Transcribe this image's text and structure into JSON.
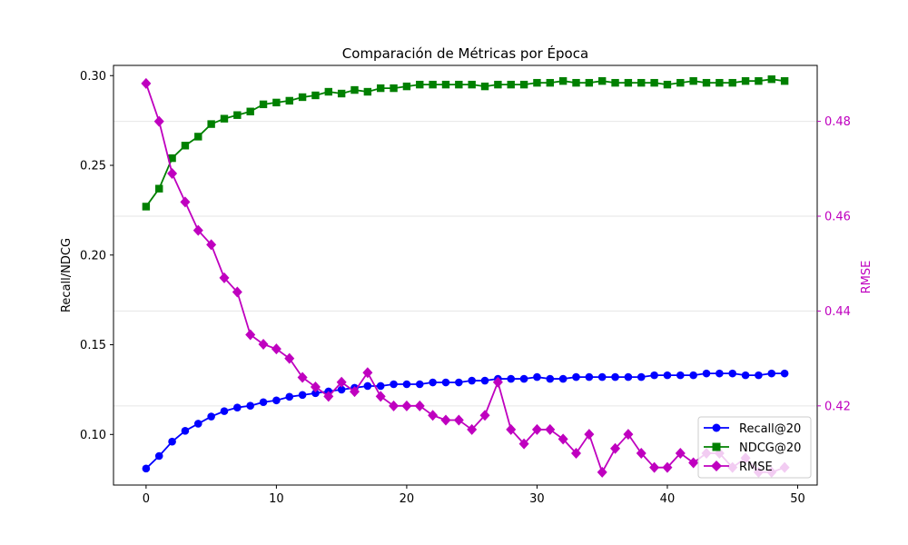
{
  "chart_data": {
    "type": "line",
    "title": "Comparación de Métricas por Época",
    "xlabel": "",
    "ylabel_left": "Recall/NDCG",
    "ylabel_right": "RMSE",
    "xlim": [
      -2.5,
      51.5
    ],
    "ylim_left": [
      0.0718,
      0.3057
    ],
    "ylim_right": [
      0.4033,
      0.4918
    ],
    "x_ticks": [
      "0",
      "10",
      "20",
      "30",
      "40",
      "50"
    ],
    "y_left_ticks": [
      "0.10",
      "0.15",
      "0.20",
      "0.25",
      "0.30"
    ],
    "y_right_ticks": [
      "0.42",
      "0.44",
      "0.46",
      "0.48"
    ],
    "grid_right": true,
    "legend_position": "lower-right",
    "x": [
      0,
      1,
      2,
      3,
      4,
      5,
      6,
      7,
      8,
      9,
      10,
      11,
      12,
      13,
      14,
      15,
      16,
      17,
      18,
      19,
      20,
      21,
      22,
      23,
      24,
      25,
      26,
      27,
      28,
      29,
      30,
      31,
      32,
      33,
      34,
      35,
      36,
      37,
      38,
      39,
      40,
      41,
      42,
      43,
      44,
      45,
      46,
      47,
      48,
      49
    ],
    "series": [
      {
        "name": "Recall@20",
        "axis": "left",
        "color": "#0000ff",
        "marker": "circle",
        "values": [
          0.081,
          0.088,
          0.096,
          0.102,
          0.106,
          0.11,
          0.113,
          0.115,
          0.116,
          0.118,
          0.119,
          0.121,
          0.122,
          0.123,
          0.124,
          0.125,
          0.126,
          0.127,
          0.127,
          0.128,
          0.128,
          0.128,
          0.129,
          0.129,
          0.129,
          0.13,
          0.13,
          0.131,
          0.131,
          0.131,
          0.132,
          0.131,
          0.131,
          0.132,
          0.132,
          0.132,
          0.132,
          0.132,
          0.132,
          0.133,
          0.133,
          0.133,
          0.133,
          0.134,
          0.134,
          0.134,
          0.133,
          0.133,
          0.134,
          0.134
        ]
      },
      {
        "name": "NDCG@20",
        "axis": "left",
        "color": "#008000",
        "marker": "square",
        "values": [
          0.227,
          0.237,
          0.254,
          0.261,
          0.266,
          0.273,
          0.276,
          0.278,
          0.28,
          0.284,
          0.285,
          0.286,
          0.288,
          0.289,
          0.291,
          0.29,
          0.292,
          0.291,
          0.293,
          0.293,
          0.294,
          0.295,
          0.295,
          0.295,
          0.295,
          0.295,
          0.294,
          0.295,
          0.295,
          0.295,
          0.296,
          0.296,
          0.297,
          0.296,
          0.296,
          0.297,
          0.296,
          0.296,
          0.296,
          0.296,
          0.295,
          0.296,
          0.297,
          0.296,
          0.296,
          0.296,
          0.297,
          0.297,
          0.298,
          0.297
        ]
      },
      {
        "name": "RMSE",
        "axis": "right",
        "color": "#bf00bf",
        "marker": "diamond",
        "values": [
          0.488,
          0.48,
          0.469,
          0.463,
          0.457,
          0.454,
          0.447,
          0.444,
          0.435,
          0.433,
          0.432,
          0.43,
          0.426,
          0.424,
          0.422,
          0.425,
          0.423,
          0.427,
          0.422,
          0.42,
          0.42,
          0.42,
          0.418,
          0.417,
          0.417,
          0.415,
          0.418,
          0.425,
          0.415,
          0.412,
          0.415,
          0.415,
          0.413,
          0.41,
          0.414,
          0.406,
          0.411,
          0.414,
          0.41,
          0.407,
          0.407,
          0.41,
          0.408,
          0.41,
          0.41,
          0.407,
          0.409,
          0.406,
          0.406,
          0.407
        ]
      }
    ]
  }
}
